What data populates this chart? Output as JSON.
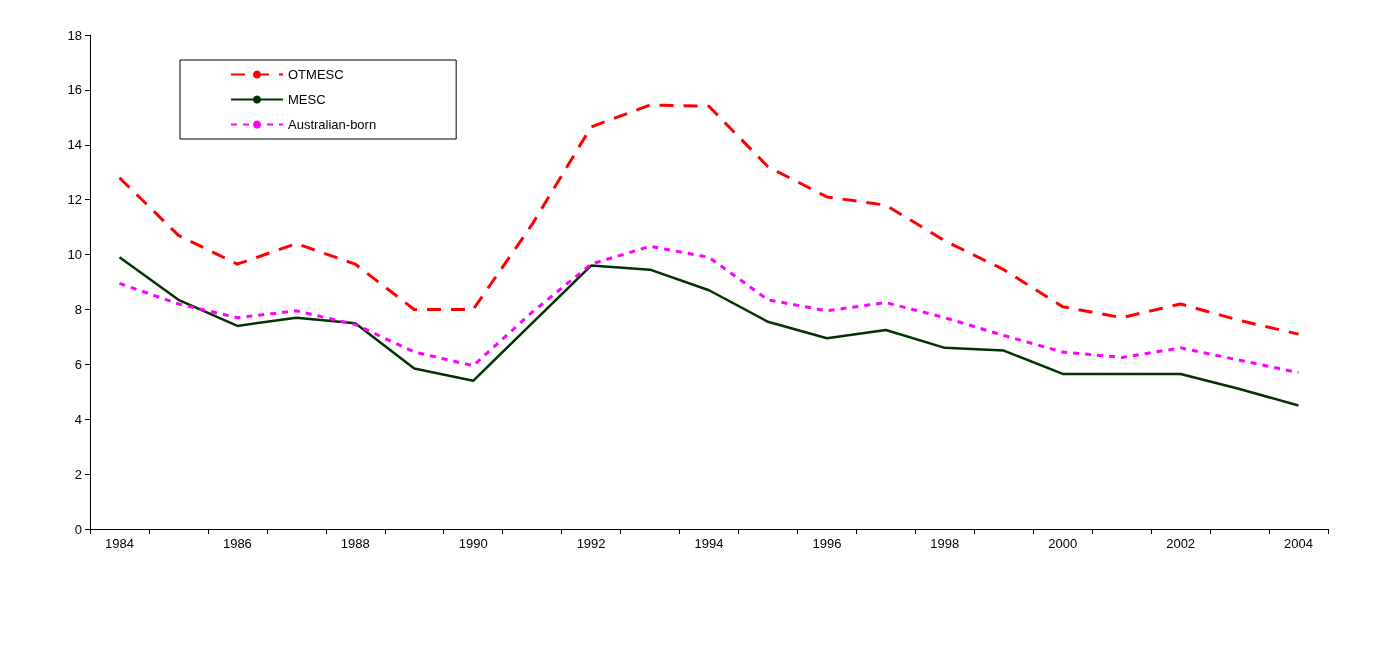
{
  "chart_data": {
    "type": "line",
    "categories": [
      "1984",
      null,
      "1986",
      null,
      "1988",
      null,
      "1990",
      null,
      "1992",
      null,
      "1994",
      null,
      "1996",
      null,
      "1998",
      null,
      "2000",
      null,
      "2002",
      null,
      "2004"
    ],
    "series": [
      {
        "name": "OTMESC",
        "color": "#ff0000",
        "line_style": "dashed",
        "values": [
          12.8,
          10.7,
          9.65,
          10.4,
          9.65,
          8.0,
          8.0,
          11.1,
          14.65,
          15.45,
          15.4,
          13.2,
          12.1,
          11.8,
          10.5,
          9.45,
          8.1,
          7.7,
          8.2,
          7.6,
          7.1
        ]
      },
      {
        "name": "MESC",
        "color": "#003300",
        "line_style": "solid",
        "values": [
          9.9,
          8.35,
          7.4,
          7.7,
          7.5,
          5.85,
          5.4,
          7.5,
          9.6,
          9.45,
          8.7,
          7.55,
          6.95,
          7.25,
          6.6,
          6.5,
          5.65,
          5.65,
          5.65,
          5.1,
          4.5
        ]
      },
      {
        "name": "Australian-born",
        "color": "#ff00ff",
        "line_style": "dotted",
        "values": [
          8.95,
          8.2,
          7.7,
          7.95,
          7.45,
          6.45,
          5.95,
          7.9,
          9.65,
          10.3,
          9.9,
          8.35,
          7.95,
          8.25,
          7.7,
          7.05,
          6.45,
          6.25,
          6.6,
          6.15,
          5.7
        ]
      }
    ],
    "ylim": [
      0,
      18
    ],
    "yticks": [
      0,
      2,
      4,
      6,
      8,
      10,
      12,
      14,
      16,
      18
    ],
    "legend": "top left",
    "marker": "none",
    "grid": false
  }
}
